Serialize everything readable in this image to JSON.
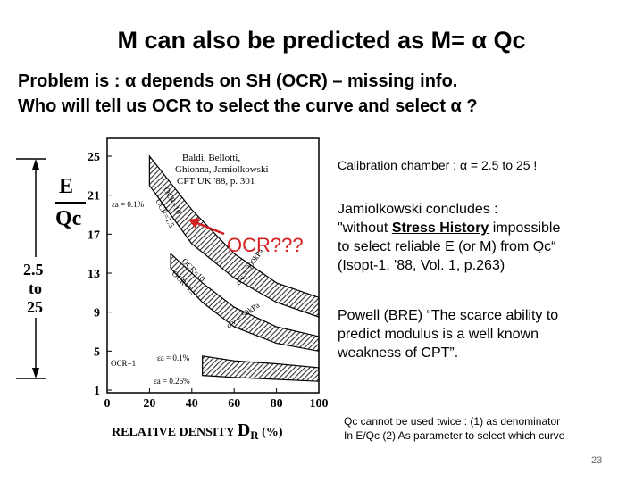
{
  "title": "M  can also be predicted as M= α Qc",
  "problem_line1": "Problem is : α depends on SH (OCR) – missing info.",
  "problem_line2": "Who will tell us OCR to select the curve and select α ?",
  "calibration": "Calibration chamber : α = 2.5 to 25  !",
  "jamiolkowski": {
    "l1": "Jamiolkowski concludes :",
    "l2_pre": "\"without ",
    "l2_u": "Stress History",
    "l2_post": " impossible",
    "l3": "to select reliable E (or M) from Qc“",
    "l4": "(Isopt-1, '88, Vol. 1, p.263)"
  },
  "powell": {
    "l1": "Powell (BRE)  “The scarce ability to",
    "l2": "predict modulus is a well known",
    "l3": "weakness of CPT”."
  },
  "qc_note": {
    "l1": "Qc cannot be used twice : (1) as denominator",
    "l2": "In E/Qc  (2) As parameter to select which curve"
  },
  "page_number": "23",
  "ocr_callout": "OCR???",
  "left_axis": {
    "e_label": "E",
    "qc_label": "Qc",
    "range_l1": "2.5",
    "range_l2": "to",
    "range_l3": "25"
  },
  "chart_data": {
    "type": "line",
    "xlabel_pre": "RELATIVE DENSITY ",
    "xlabel_d": "D",
    "xlabel_r": "R",
    "xlabel_post": " (%)",
    "x_ticks": [
      "0",
      "20",
      "40",
      "60",
      "80",
      "100"
    ],
    "y_ticks": [
      "25",
      "21",
      "17",
      "13",
      "9",
      "5",
      "1"
    ],
    "xlim": [
      0,
      100
    ],
    "ylim": [
      1,
      25
    ],
    "reference_l1": "Baldi, Bellotti,",
    "reference_l2": "Ghionna, Jamiolkowski",
    "reference_l3": "CPT UK '88, p. 301",
    "strain_01": "εa = 0.1%",
    "strain_026": "εa = 0.26%",
    "ocr_10": "OCR=10",
    "ocr_15": "OCR=1.5",
    "ocr_1": "OCR=1",
    "stress_300": "σ'v = 300kPa",
    "stress_50": "σ'v = 50kPa",
    "bands": [
      {
        "name": "upper",
        "upper": [
          [
            20,
            25
          ],
          [
            40,
            19.5
          ],
          [
            60,
            15
          ],
          [
            80,
            12
          ],
          [
            100,
            10.5
          ]
        ],
        "lower": [
          [
            20,
            22
          ],
          [
            40,
            16
          ],
          [
            60,
            12.5
          ],
          [
            80,
            10
          ],
          [
            100,
            8.5
          ]
        ]
      },
      {
        "name": "middle",
        "upper": [
          [
            30,
            15
          ],
          [
            45,
            12
          ],
          [
            60,
            9.5
          ],
          [
            80,
            7.5
          ],
          [
            100,
            6.5
          ]
        ],
        "lower": [
          [
            30,
            13.5
          ],
          [
            45,
            10
          ],
          [
            60,
            7.5
          ],
          [
            80,
            5.8
          ],
          [
            100,
            5
          ]
        ]
      },
      {
        "name": "lower",
        "upper": [
          [
            45,
            4.5
          ],
          [
            60,
            4
          ],
          [
            80,
            3.7
          ],
          [
            100,
            3.3
          ]
        ],
        "lower": [
          [
            45,
            2.5
          ],
          [
            60,
            2.3
          ],
          [
            80,
            2.1
          ],
          [
            100,
            1.9
          ]
        ]
      }
    ]
  }
}
